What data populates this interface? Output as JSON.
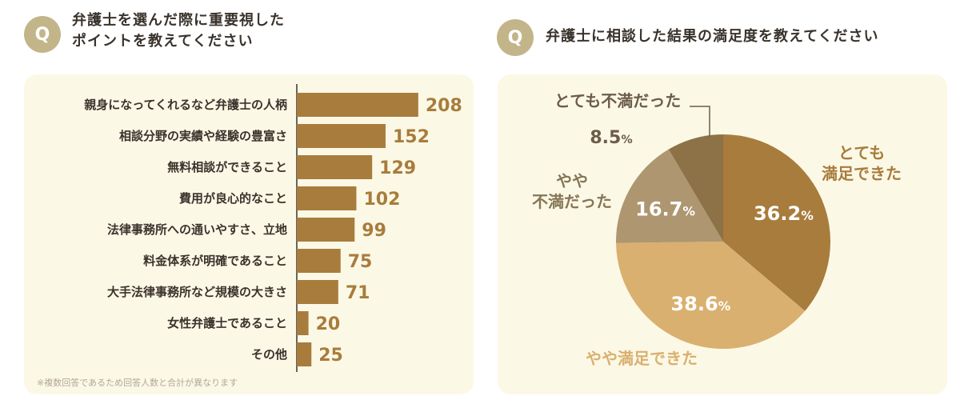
{
  "left": {
    "badge": "Q",
    "title": "弁護士を選んだ際に重要視した\nポイントを教えてください",
    "note": "※複数回答であるため回答人数と合計が異なります"
  },
  "right": {
    "badge": "Q",
    "title": "弁護士に相談した結果の満足度を教えてください"
  },
  "colors": {
    "bar": "#a87c3c",
    "value_text": "#a87c3c",
    "panel": "#fcf8e6",
    "badge": "#c3b58a"
  },
  "chart_data": [
    {
      "type": "bar",
      "orientation": "horizontal",
      "categories": [
        "親身になってくれるなど弁護士の人柄",
        "相談分野の実績や経験の豊富さ",
        "無料相談ができること",
        "費用が良心的なこと",
        "法律事務所への通いやすさ、立地",
        "料金体系が明確であること",
        "大手法律事務所など規模の大きさ",
        "女性弁護士であること",
        "その他"
      ],
      "values": [
        208,
        152,
        129,
        102,
        99,
        75,
        71,
        20,
        25
      ]
    },
    {
      "type": "pie",
      "slices": [
        {
          "label": "とても\n満足できた",
          "value": 36.2,
          "value_label": "36.2",
          "color": "#a87c3c",
          "label_color": "#a87c3c",
          "value_color": "#ffffff"
        },
        {
          "label": "やや満足できた",
          "value": 38.6,
          "value_label": "38.6",
          "color": "#d9b06f",
          "label_color": "#d9b06f",
          "value_color": "#ffffff"
        },
        {
          "label": "やや\n不満だった",
          "value": 16.7,
          "value_label": "16.7",
          "color": "#ad9670",
          "label_color": "#857656",
          "value_color": "#ffffff"
        },
        {
          "label": "とても不満だった",
          "value": 8.5,
          "value_label": "8.5",
          "color": "#8c7246",
          "label_color": "#6b5d49",
          "value_color": "#6b5d49"
        }
      ],
      "unit": "%"
    }
  ]
}
